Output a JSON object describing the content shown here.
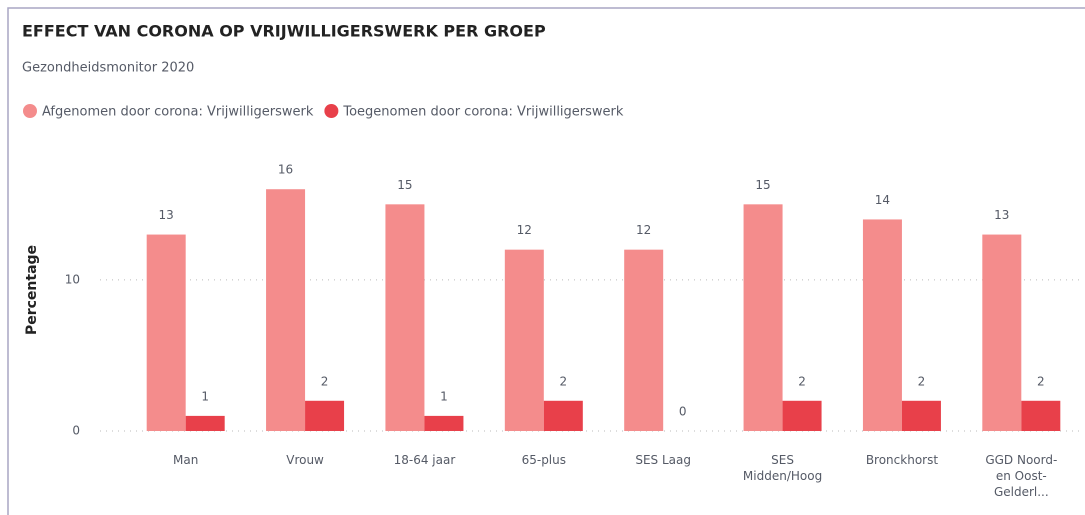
{
  "chart_data": {
    "type": "bar",
    "title": "EFFECT VAN CORONA OP VRIJWILLIGERSWERK PER GROEP",
    "subtitle": "Gezondheidsmonitor 2020",
    "y_label": "Percentage",
    "categories": [
      "Man",
      "Vrouw",
      "18-64 jaar",
      "65-plus",
      "SES Laag",
      "SES Midden/Hoog",
      "Bronckhorst",
      "GGD Noord-en Oost-Gelderl..."
    ],
    "series": [
      {
        "name": "Afgenomen door corona: Vrijwilligerswerk",
        "color": "#f48c8c",
        "values": [
          13,
          16,
          15,
          12,
          12,
          15,
          14,
          13
        ]
      },
      {
        "name": "Toegenomen door corona: Vrijwilligerswerk",
        "color": "#e8404a",
        "values": [
          1,
          2,
          1,
          2,
          0,
          2,
          2,
          2
        ]
      }
    ],
    "ylim": [
      0,
      18
    ],
    "yticks": [
      0,
      10
    ],
    "grid": true,
    "legend": "top-left"
  }
}
